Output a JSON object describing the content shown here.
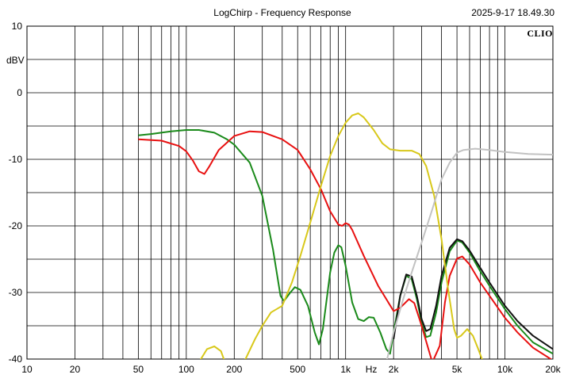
{
  "header": {
    "title": "LogChirp - Frequency Response",
    "timestamp": "2025-9-17 18.49.30",
    "brand": "CLIO"
  },
  "chart_data": {
    "type": "line",
    "xscale": "log",
    "xlim": [
      10,
      20000
    ],
    "ylim": [
      -40,
      10
    ],
    "ylabel": "dBV",
    "xlabel": "Hz",
    "grid": true,
    "y_ticks": [
      {
        "value": 10,
        "label": "10"
      },
      {
        "value": 0,
        "label": "0"
      },
      {
        "value": -10,
        "label": "-10"
      },
      {
        "value": -20,
        "label": "-20"
      },
      {
        "value": -30,
        "label": "-30"
      },
      {
        "value": -40,
        "label": "-40"
      }
    ],
    "x_ticks": [
      {
        "value": 10,
        "label": "10"
      },
      {
        "value": 20,
        "label": "20"
      },
      {
        "value": 50,
        "label": "50"
      },
      {
        "value": 100,
        "label": "100"
      },
      {
        "value": 200,
        "label": "200"
      },
      {
        "value": 500,
        "label": "500"
      },
      {
        "value": 1000,
        "label": "1k"
      },
      {
        "value": 2000,
        "label": "2k"
      },
      {
        "value": 5000,
        "label": "5k"
      },
      {
        "value": 10000,
        "label": "10k"
      },
      {
        "value": 20000,
        "label": "20k"
      }
    ],
    "series": [
      {
        "color": "#1a8a1a",
        "points": [
          [
            50,
            -6.4
          ],
          [
            60,
            -6.2
          ],
          [
            80,
            -5.8
          ],
          [
            100,
            -5.6
          ],
          [
            120,
            -5.6
          ],
          [
            150,
            -6.0
          ],
          [
            180,
            -7.0
          ],
          [
            200,
            -7.8
          ],
          [
            250,
            -10.5
          ],
          [
            300,
            -15.5
          ],
          [
            350,
            -23.5
          ],
          [
            390,
            -30.5
          ],
          [
            410,
            -31.3
          ],
          [
            450,
            -30.0
          ],
          [
            480,
            -29.2
          ],
          [
            520,
            -29.6
          ],
          [
            580,
            -32.0
          ],
          [
            640,
            -36.0
          ],
          [
            680,
            -37.8
          ],
          [
            720,
            -35.5
          ],
          [
            800,
            -27.0
          ],
          [
            850,
            -24.0
          ],
          [
            900,
            -22.9
          ],
          [
            940,
            -23.2
          ],
          [
            1000,
            -26.0
          ],
          [
            1100,
            -31.5
          ],
          [
            1200,
            -34.0
          ],
          [
            1300,
            -34.3
          ],
          [
            1400,
            -33.7
          ],
          [
            1500,
            -33.8
          ],
          [
            1650,
            -36.0
          ],
          [
            1800,
            -38.5
          ],
          [
            1900,
            -39.2
          ],
          [
            2000,
            -36.0
          ],
          [
            2200,
            -30.5
          ],
          [
            2400,
            -27.5
          ],
          [
            2600,
            -28.0
          ],
          [
            2800,
            -31.0
          ],
          [
            3000,
            -34.5
          ],
          [
            3200,
            -36.7
          ],
          [
            3400,
            -36.5
          ],
          [
            3700,
            -33.0
          ],
          [
            4000,
            -28.5
          ],
          [
            4500,
            -23.8
          ],
          [
            5000,
            -22.2
          ],
          [
            5400,
            -22.5
          ],
          [
            6000,
            -24.0
          ],
          [
            7000,
            -26.8
          ],
          [
            8000,
            -29.0
          ],
          [
            10000,
            -32.5
          ],
          [
            12000,
            -35.0
          ],
          [
            15000,
            -37.5
          ],
          [
            20000,
            -39.2
          ]
        ]
      },
      {
        "color": "#111111",
        "points": [
          [
            2000,
            -37.0
          ],
          [
            2200,
            -30.5
          ],
          [
            2400,
            -27.3
          ],
          [
            2600,
            -27.6
          ],
          [
            2800,
            -30.5
          ],
          [
            3000,
            -34.0
          ],
          [
            3200,
            -35.8
          ],
          [
            3400,
            -35.5
          ],
          [
            3700,
            -32.0
          ],
          [
            4000,
            -27.5
          ],
          [
            4500,
            -23.3
          ],
          [
            5000,
            -22.0
          ],
          [
            5400,
            -22.3
          ],
          [
            6000,
            -23.7
          ],
          [
            7000,
            -26.3
          ],
          [
            8000,
            -28.5
          ],
          [
            10000,
            -32.0
          ],
          [
            12000,
            -34.3
          ],
          [
            15000,
            -36.5
          ],
          [
            20000,
            -38.5
          ]
        ]
      },
      {
        "color": "#e81010",
        "points": [
          [
            50,
            -7.0
          ],
          [
            70,
            -7.2
          ],
          [
            90,
            -8.0
          ],
          [
            100,
            -8.8
          ],
          [
            110,
            -10.2
          ],
          [
            120,
            -11.8
          ],
          [
            130,
            -12.2
          ],
          [
            140,
            -11.0
          ],
          [
            160,
            -8.6
          ],
          [
            200,
            -6.5
          ],
          [
            250,
            -5.8
          ],
          [
            300,
            -5.9
          ],
          [
            400,
            -7.0
          ],
          [
            500,
            -8.6
          ],
          [
            600,
            -11.5
          ],
          [
            700,
            -14.5
          ],
          [
            800,
            -17.8
          ],
          [
            900,
            -19.8
          ],
          [
            950,
            -20.0
          ],
          [
            1000,
            -19.6
          ],
          [
            1050,
            -19.8
          ],
          [
            1100,
            -20.6
          ],
          [
            1300,
            -24.5
          ],
          [
            1600,
            -29.0
          ],
          [
            1800,
            -31.0
          ],
          [
            2000,
            -32.8
          ],
          [
            2200,
            -32.3
          ],
          [
            2500,
            -31.0
          ],
          [
            2700,
            -31.6
          ],
          [
            3000,
            -35.0
          ],
          [
            3500,
            -40.5
          ],
          [
            3900,
            -38.0
          ],
          [
            4200,
            -31.5
          ],
          [
            4500,
            -27.5
          ],
          [
            5000,
            -24.9
          ],
          [
            5400,
            -24.6
          ],
          [
            6000,
            -25.8
          ],
          [
            7000,
            -28.5
          ],
          [
            8000,
            -30.5
          ],
          [
            10000,
            -33.8
          ],
          [
            12000,
            -36.0
          ],
          [
            15000,
            -38.3
          ],
          [
            20000,
            -40.2
          ]
        ]
      },
      {
        "color": "#d8c81a",
        "points": [
          [
            120,
            -40.5
          ],
          [
            135,
            -38.5
          ],
          [
            150,
            -38.1
          ],
          [
            165,
            -38.8
          ],
          [
            175,
            -40.5
          ],
          [
            230,
            -40.5
          ],
          [
            270,
            -37.0
          ],
          [
            300,
            -35.0
          ],
          [
            340,
            -33.0
          ],
          [
            400,
            -32.0
          ],
          [
            460,
            -28.5
          ],
          [
            520,
            -24.5
          ],
          [
            600,
            -19.5
          ],
          [
            700,
            -14.0
          ],
          [
            800,
            -9.5
          ],
          [
            900,
            -6.5
          ],
          [
            1000,
            -4.5
          ],
          [
            1100,
            -3.4
          ],
          [
            1200,
            -3.1
          ],
          [
            1300,
            -3.7
          ],
          [
            1500,
            -5.6
          ],
          [
            1700,
            -7.6
          ],
          [
            1900,
            -8.5
          ],
          [
            2200,
            -8.7
          ],
          [
            2600,
            -8.7
          ],
          [
            2900,
            -9.2
          ],
          [
            3200,
            -11.0
          ],
          [
            3600,
            -15.5
          ],
          [
            4000,
            -22.0
          ],
          [
            4400,
            -29.5
          ],
          [
            4800,
            -35.5
          ],
          [
            5000,
            -36.8
          ],
          [
            5300,
            -36.5
          ],
          [
            5800,
            -35.5
          ],
          [
            6300,
            -36.5
          ],
          [
            6800,
            -38.5
          ],
          [
            7300,
            -40.5
          ]
        ]
      },
      {
        "color": "#c2c2c2",
        "points": [
          [
            1800,
            -40.5
          ],
          [
            2000,
            -36.0
          ],
          [
            2300,
            -31.0
          ],
          [
            2600,
            -27.0
          ],
          [
            3000,
            -22.5
          ],
          [
            3500,
            -17.5
          ],
          [
            4000,
            -13.0
          ],
          [
            4500,
            -10.5
          ],
          [
            5000,
            -9.0
          ],
          [
            5500,
            -8.6
          ],
          [
            6500,
            -8.4
          ],
          [
            8000,
            -8.6
          ],
          [
            10000,
            -8.9
          ],
          [
            14000,
            -9.2
          ],
          [
            20000,
            -9.3
          ]
        ]
      }
    ]
  }
}
